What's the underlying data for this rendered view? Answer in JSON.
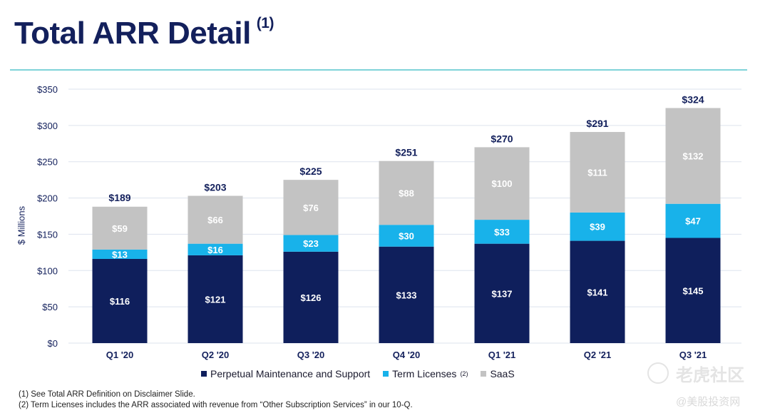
{
  "page": {
    "title": "Total ARR Detail",
    "title_note": "(1)",
    "footnotes": [
      "(1)  See Total ARR Definition on Disclaimer Slide.",
      "(2)  Term Licenses includes the ARR associated with revenue from “Other Subscription Services” in our 10-Q."
    ],
    "watermark": {
      "line1": "老虎社区",
      "line2": "@美股投资网"
    }
  },
  "colors": {
    "perpetual": "#0f1f5c",
    "term": "#18b2ea",
    "saas": "#c3c3c3",
    "grid": "#dde3ee",
    "label_dark": "#13205c"
  },
  "chart_data": {
    "type": "bar",
    "stacked": true,
    "title": "Total ARR Detail",
    "xlabel": "",
    "ylabel": "$ Millions",
    "ylim": [
      0,
      350
    ],
    "yticks": [
      0,
      50,
      100,
      150,
      200,
      250,
      300,
      350
    ],
    "ytick_labels": [
      "$0",
      "$50",
      "$100",
      "$150",
      "$200",
      "$250",
      "$300",
      "$350"
    ],
    "grid": true,
    "categories": [
      "Q1 '20",
      "Q2 '20",
      "Q3 '20",
      "Q4 '20",
      "Q1 '21",
      "Q2 '21",
      "Q3 '21"
    ],
    "series": [
      {
        "name": "Perpetual Maintenance and Support",
        "values": [
          116,
          121,
          126,
          133,
          137,
          141,
          145
        ],
        "labels": [
          "$116",
          "$121",
          "$126",
          "$133",
          "$137",
          "$141",
          "$145"
        ]
      },
      {
        "name": "Term Licenses",
        "name_note": "(2)",
        "values": [
          13,
          16,
          23,
          30,
          33,
          39,
          47
        ],
        "labels": [
          "$13",
          "$16",
          "$23",
          "$30",
          "$33",
          "$39",
          "$47"
        ]
      },
      {
        "name": "SaaS",
        "values": [
          59,
          66,
          76,
          88,
          100,
          111,
          132
        ],
        "labels": [
          "$59",
          "$66",
          "$76",
          "$88",
          "$100",
          "$111",
          "$132"
        ]
      }
    ],
    "totals": [
      189,
      203,
      225,
      251,
      270,
      291,
      324
    ],
    "total_labels": [
      "$189",
      "$203",
      "$225",
      "$251",
      "$270",
      "$291",
      "$324"
    ],
    "legend": "bottom-center"
  }
}
